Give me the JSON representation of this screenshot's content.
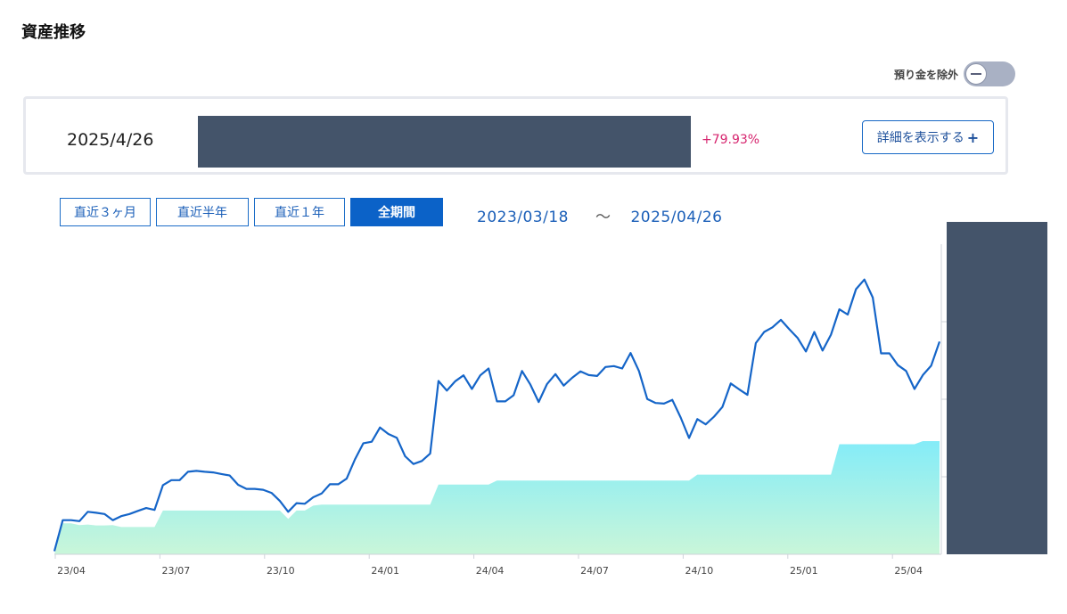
{
  "page": {
    "title": "資産推移"
  },
  "toggle": {
    "label": "預り金を除外",
    "state": "off"
  },
  "summary": {
    "date": "2025/4/26",
    "change_pct": "+79.93%",
    "detail_button": "詳細を表示する",
    "detail_button_icon": "+"
  },
  "periods": [
    "直近３ヶ月",
    "直近半年",
    "直近１年",
    "全期間"
  ],
  "active_period": "全期間",
  "range": {
    "start": "2023/03/18",
    "separator": "～",
    "end": "2025/04/26"
  },
  "colors": {
    "line": "#1565c8",
    "area_top": "#84ecf8",
    "area_bottom": "#c9f6d9",
    "positive": "#d6246e",
    "mask": "#44546a"
  },
  "chart_data": {
    "type": "line",
    "x_tick_labels": [
      "23/04",
      "23/07",
      "23/10",
      "24/01",
      "24/04",
      "24/07",
      "24/10",
      "25/01",
      "25/04"
    ],
    "y_scale": "relative (y-axis labels hidden)",
    "series": [
      {
        "style": "line",
        "y": [
          1,
          11,
          11,
          10.7,
          13.7,
          13.4,
          13,
          11,
          12.3,
          13,
          14,
          14.9,
          14.3,
          22.3,
          23.9,
          23.9,
          26.6,
          26.9,
          26.6,
          26.4,
          25.9,
          25.4,
          22.4,
          21.1,
          21.1,
          20.8,
          19.8,
          17.2,
          13.7,
          16.5,
          16.3,
          18.4,
          19.6,
          22.6,
          22.6,
          24.4,
          30.6,
          35.8,
          36.3,
          40.9,
          38.8,
          37.6,
          31.6,
          29.1,
          30.1,
          32.5,
          55.9,
          52.8,
          55.8,
          57.7,
          53.3,
          57.7,
          59.9,
          49.3,
          49.3,
          51.3,
          59.1,
          54.7,
          49.1,
          54.9,
          58.1,
          54.4,
          56.9,
          59,
          57.8,
          57.5,
          60.4,
          60.7,
          59.9,
          64.9,
          59.1,
          50.1,
          48.8,
          48.6,
          49.8,
          44.1,
          37.5,
          43.6,
          41.9,
          44.4,
          47.5,
          55.1,
          53.2,
          51.4,
          68.1,
          71.7,
          73.2,
          75.6,
          72.6,
          69.8,
          65.4,
          71.7,
          65.7,
          70.8,
          79,
          77.3,
          85.5,
          88.6,
          82.8,
          64.8,
          64.8,
          61,
          59.1,
          53.3,
          57.8,
          60.8,
          68.6
        ]
      },
      {
        "style": "area",
        "y": [
          0,
          10,
          10,
          9.4,
          9.6,
          9.3,
          9.3,
          9.4,
          8.8,
          8.8,
          8.8,
          8.8,
          8.8,
          14.1,
          14.1,
          14.1,
          14.1,
          14.1,
          14.1,
          14.1,
          14.1,
          14.1,
          14.1,
          14.1,
          14.1,
          14.1,
          14.1,
          14.1,
          11.4,
          14.1,
          14.1,
          15.7,
          16,
          16,
          16,
          16,
          16,
          16,
          16,
          16,
          16,
          16,
          16,
          16,
          16,
          16,
          22.5,
          22.5,
          22.5,
          22.5,
          22.5,
          22.5,
          22.5,
          23.8,
          23.8,
          23.8,
          23.8,
          23.8,
          23.8,
          23.8,
          23.8,
          23.8,
          23.8,
          23.8,
          23.8,
          23.8,
          23.8,
          23.8,
          23.8,
          23.8,
          23.8,
          23.8,
          23.8,
          23.8,
          23.8,
          23.8,
          23.8,
          25.7,
          25.7,
          25.7,
          25.7,
          25.7,
          25.7,
          25.7,
          25.7,
          25.7,
          25.7,
          25.7,
          25.7,
          25.7,
          25.7,
          25.7,
          25.7,
          25.7,
          35.5,
          35.5,
          35.5,
          35.5,
          35.5,
          35.5,
          35.5,
          35.5,
          35.5,
          35.5,
          36.5,
          36.5,
          36.5
        ]
      }
    ]
  }
}
